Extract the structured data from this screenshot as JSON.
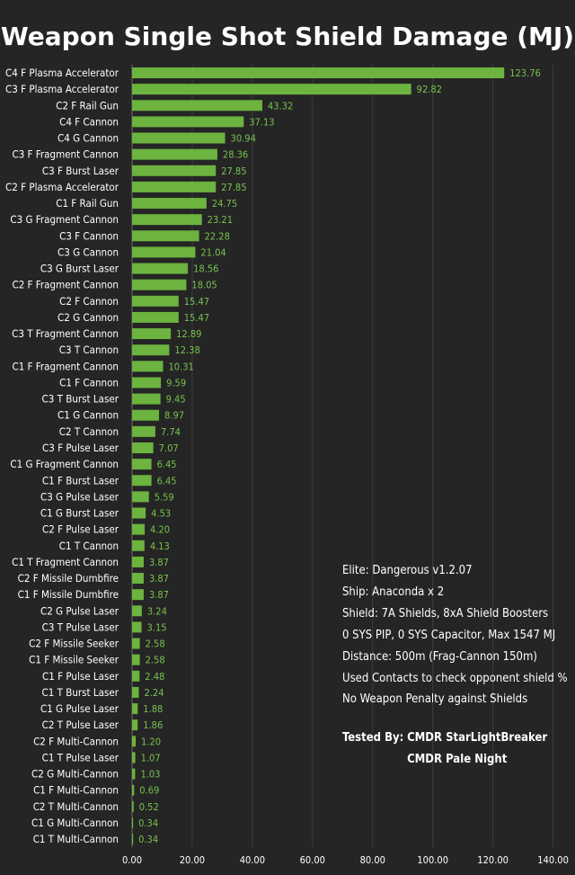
{
  "title": "Weapon Single Shot Shield Damage (MJ)",
  "colors": {
    "bar": "#6cb33f",
    "value_label": "#79c24f",
    "background": "#252525",
    "text": "#ffffff",
    "grid": "#3d3d3d"
  },
  "notes": [
    "Elite: Dangerous v1.2.07",
    "Ship: Anaconda x 2",
    "Shield: 7A Shields, 8xA Shield Boosters",
    "0 SYS PIP, 0 SYS Capacitor, Max 1547 MJ",
    "Distance: 500m (Frag-Cannon 150m)",
    "Used Contacts to check opponent shield %",
    "No Weapon Penalty against Shields"
  ],
  "tested_by": {
    "label": "Tested By:",
    "names": [
      "CMDR StarLightBreaker",
      "CMDR Pale Night"
    ]
  },
  "chart_data": {
    "type": "bar",
    "orientation": "horizontal",
    "title": "Weapon Single Shot Shield Damage (MJ)",
    "xlim": [
      0,
      140
    ],
    "x_ticks": [
      "0.00",
      "20.00",
      "40.00",
      "60.00",
      "80.00",
      "100.00",
      "120.00",
      "140.00"
    ],
    "grid": true,
    "categories": [
      "C4 F Plasma Accelerator",
      "C3 F Plasma Accelerator",
      "C2 F Rail Gun",
      "C4 F Cannon",
      "C4 G Cannon",
      "C3 F Fragment Cannon",
      "C3 F Burst Laser",
      "C2 F Plasma Accelerator",
      "C1 F Rail Gun",
      "C3 G Fragment Cannon",
      "C3 F Cannon",
      "C3 G Cannon",
      "C3 G Burst Laser",
      "C2 F Fragment Cannon",
      "C2 F Cannon",
      "C2 G Cannon",
      "C3 T Fragment Cannon",
      "C3 T Cannon",
      "C1 F Fragment Cannon",
      "C1 F Cannon",
      "C3 T Burst Laser",
      "C1 G Cannon",
      "C2 T Cannon",
      "C3 F Pulse Laser",
      "C1 G Fragment Cannon",
      "C1 F Burst Laser",
      "C3 G Pulse Laser",
      "C1 G Burst Laser",
      "C2 F Pulse Laser",
      "C1 T Cannon",
      "C1 T Fragment Cannon",
      "C2 F Missile Dumbfire",
      "C1 F Missile Dumbfire",
      "C2 G Pulse Laser",
      "C3 T Pulse Laser",
      "C2 F Missile Seeker",
      "C1 F Missile Seeker",
      "C1 F Pulse Laser",
      "C1 T Burst Laser",
      "C1 G Pulse Laser",
      "C2 T Pulse Laser",
      "C2 F Multi-Cannon",
      "C1 T Pulse Laser",
      "C2 G Multi-Cannon",
      "C1 F Multi-Cannon",
      "C2 T Multi-Cannon",
      "C1 G Multi-Cannon",
      "C1 T Multi-Cannon"
    ],
    "values": [
      123.76,
      92.82,
      43.32,
      37.13,
      30.94,
      28.36,
      27.85,
      27.85,
      24.75,
      23.21,
      22.28,
      21.04,
      18.56,
      18.05,
      15.47,
      15.47,
      12.89,
      12.38,
      10.31,
      9.59,
      9.45,
      8.97,
      7.74,
      7.07,
      6.45,
      6.45,
      5.59,
      4.53,
      4.2,
      4.13,
      3.87,
      3.87,
      3.87,
      3.24,
      3.15,
      2.58,
      2.58,
      2.48,
      2.24,
      1.88,
      1.86,
      1.2,
      1.07,
      1.03,
      0.69,
      0.52,
      0.34,
      0.34
    ],
    "value_labels": [
      "123.76",
      "92.82",
      "43.32",
      "37.13",
      "30.94",
      "28.36",
      "27.85",
      "27.85",
      "24.75",
      "23.21",
      "22.28",
      "21.04",
      "18.56",
      "18.05",
      "15.47",
      "15.47",
      "12.89",
      "12.38",
      "10.31",
      "9.59",
      "9.45",
      "8.97",
      "7.74",
      "7.07",
      "6.45",
      "6.45",
      "5.59",
      "4.53",
      "4.20",
      "4.13",
      "3.87",
      "3.87",
      "3.87",
      "3.24",
      "3.15",
      "2.58",
      "2.58",
      "2.48",
      "2.24",
      "1.88",
      "1.86",
      "1.20",
      "1.07",
      "1.03",
      "0.69",
      "0.52",
      "0.34",
      "0.34"
    ]
  }
}
